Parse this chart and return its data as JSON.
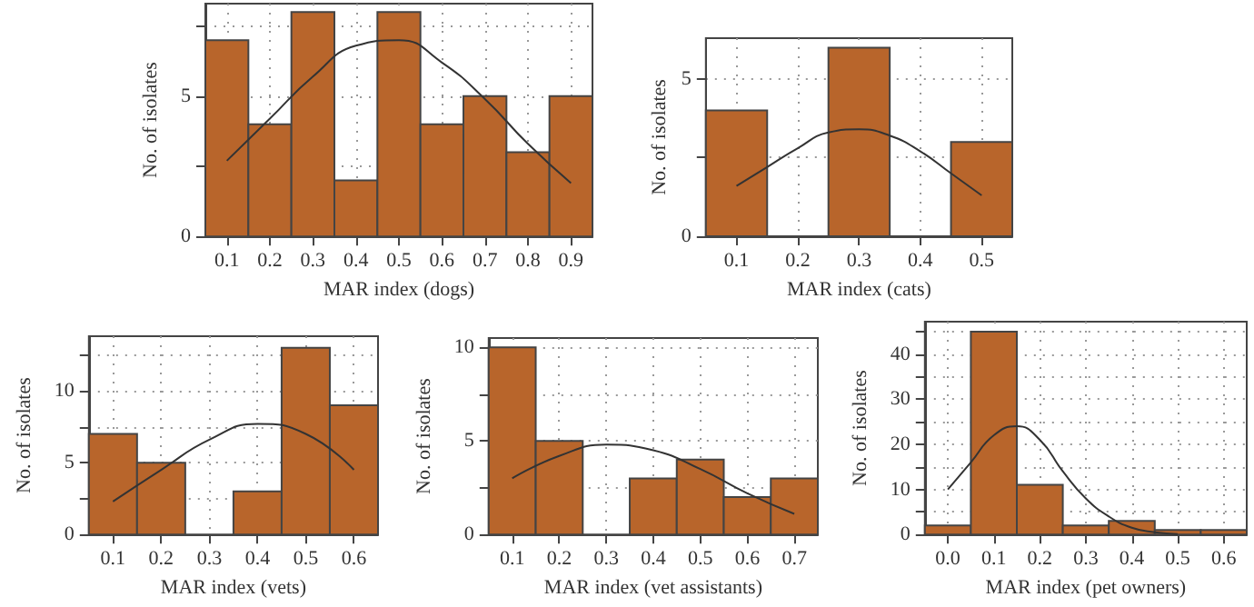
{
  "chart_data": [
    {
      "type": "histogram",
      "xlabel": "MAR index (dogs)",
      "ylabel": "No. of isolates",
      "grid": true,
      "xlim": [
        0.05,
        0.95
      ],
      "xticks": [
        0.1,
        0.2,
        0.3,
        0.4,
        0.5,
        0.6,
        0.7,
        0.8,
        0.9
      ],
      "ylim": [
        0,
        8.3
      ],
      "yticks": [
        0,
        {
          "value": 2.5,
          "label": null
        },
        5,
        {
          "value": 7.5,
          "label": null
        }
      ],
      "series": [
        {
          "color": "#b8652b",
          "bins": [
            0.05,
            0.15,
            0.25,
            0.35,
            0.45,
            0.55,
            0.65,
            0.75,
            0.85,
            0.95
          ],
          "values": [
            7,
            4,
            8,
            2,
            8,
            4,
            5,
            3,
            5
          ]
        },
        {
          "type": "line",
          "color": "#333333",
          "x": [
            0.1,
            0.2,
            0.3,
            0.4,
            0.5,
            0.6,
            0.7,
            0.8,
            0.9
          ],
          "values": [
            2.7,
            4.2,
            5.7,
            6.8,
            7.0,
            6.2,
            4.9,
            3.3,
            1.9
          ]
        }
      ]
    },
    {
      "type": "histogram",
      "xlabel": "MAR index (cats)",
      "ylabel": "No. of isolates",
      "grid": true,
      "xlim": [
        0.05,
        0.55
      ],
      "xticks": [
        0.1,
        0.2,
        0.3,
        0.4,
        0.5
      ],
      "ylim": [
        0,
        6.3
      ],
      "yticks": [
        0,
        {
          "value": 2.5,
          "label": null
        },
        5
      ],
      "series": [
        {
          "color": "#b8652b",
          "bins": [
            0.05,
            0.15,
            0.25,
            0.35,
            0.45,
            0.55
          ],
          "values": [
            4,
            0,
            6,
            0,
            3
          ]
        },
        {
          "type": "line",
          "color": "#333333",
          "x": [
            0.1,
            0.15,
            0.2,
            0.25,
            0.3,
            0.35,
            0.4,
            0.45,
            0.5
          ],
          "values": [
            1.6,
            2.2,
            2.8,
            3.3,
            3.4,
            3.2,
            2.7,
            2.0,
            1.3
          ]
        }
      ]
    },
    {
      "type": "histogram",
      "xlabel": "MAR index (vets)",
      "ylabel": "No. of isolates",
      "grid": true,
      "xlim": [
        0.05,
        0.65
      ],
      "xticks": [
        0.1,
        0.2,
        0.3,
        0.4,
        0.5,
        0.6
      ],
      "ylim": [
        0,
        13.8
      ],
      "yticks": [
        0,
        {
          "value": 2.5,
          "label": null
        },
        5,
        {
          "value": 7.5,
          "label": null
        },
        10,
        {
          "value": 12.5,
          "label": null
        }
      ],
      "series": [
        {
          "color": "#b8652b",
          "bins": [
            0.05,
            0.15,
            0.25,
            0.35,
            0.45,
            0.55,
            0.65
          ],
          "values": [
            7,
            5,
            0,
            3,
            13,
            9
          ]
        },
        {
          "type": "line",
          "color": "#333333",
          "x": [
            0.1,
            0.2,
            0.3,
            0.4,
            0.5,
            0.6
          ],
          "values": [
            2.3,
            4.5,
            6.6,
            7.7,
            7.0,
            4.5
          ]
        }
      ]
    },
    {
      "type": "histogram",
      "xlabel": "MAR index (vet assistants)",
      "ylabel": "No. of isolates",
      "grid": true,
      "xlim": [
        0.05,
        0.75
      ],
      "xticks": [
        0.1,
        0.2,
        0.3,
        0.4,
        0.5,
        0.6,
        0.7
      ],
      "ylim": [
        0,
        10.5
      ],
      "yticks": [
        0,
        {
          "value": 2.5,
          "label": null
        },
        5,
        {
          "value": 7.5,
          "label": null
        },
        10
      ],
      "series": [
        {
          "color": "#b8652b",
          "bins": [
            0.05,
            0.15,
            0.25,
            0.35,
            0.45,
            0.55,
            0.65,
            0.75
          ],
          "values": [
            10,
            5,
            0,
            3,
            4,
            2,
            3
          ]
        },
        {
          "type": "line",
          "color": "#333333",
          "x": [
            0.1,
            0.2,
            0.3,
            0.4,
            0.5,
            0.6,
            0.7
          ],
          "values": [
            3.0,
            4.2,
            4.8,
            4.5,
            3.5,
            2.2,
            1.1
          ]
        }
      ]
    },
    {
      "type": "histogram",
      "xlabel": "MAR index (pet owners)",
      "ylabel": "No. of isolates",
      "grid": true,
      "xlim": [
        -0.05,
        0.65
      ],
      "xticks": [
        {
          "value": 0,
          "label": "0.0"
        },
        0.1,
        0.2,
        0.3,
        0.4,
        0.5,
        0.6
      ],
      "ylim": [
        0,
        47.2
      ],
      "yticks": [
        0,
        {
          "value": 5,
          "label": null
        },
        10,
        {
          "value": 15,
          "label": null
        },
        20,
        {
          "value": 25,
          "label": null
        },
        30,
        {
          "value": 35,
          "label": null
        },
        40,
        {
          "value": 45,
          "label": null
        }
      ],
      "series": [
        {
          "color": "#b8652b",
          "bins": [
            -0.05,
            0.05,
            0.15,
            0.25,
            0.35,
            0.45,
            0.55,
            0.65
          ],
          "values": [
            2,
            45,
            11,
            2,
            3,
            1,
            1
          ]
        },
        {
          "type": "line",
          "color": "#333333",
          "x": [
            0,
            0.05,
            0.1,
            0.15,
            0.2,
            0.25,
            0.3,
            0.35,
            0.4,
            0.45,
            0.5
          ],
          "values": [
            10,
            16,
            22,
            24,
            21,
            14,
            8,
            4,
            1.5,
            0.5,
            0.1
          ]
        }
      ]
    }
  ]
}
